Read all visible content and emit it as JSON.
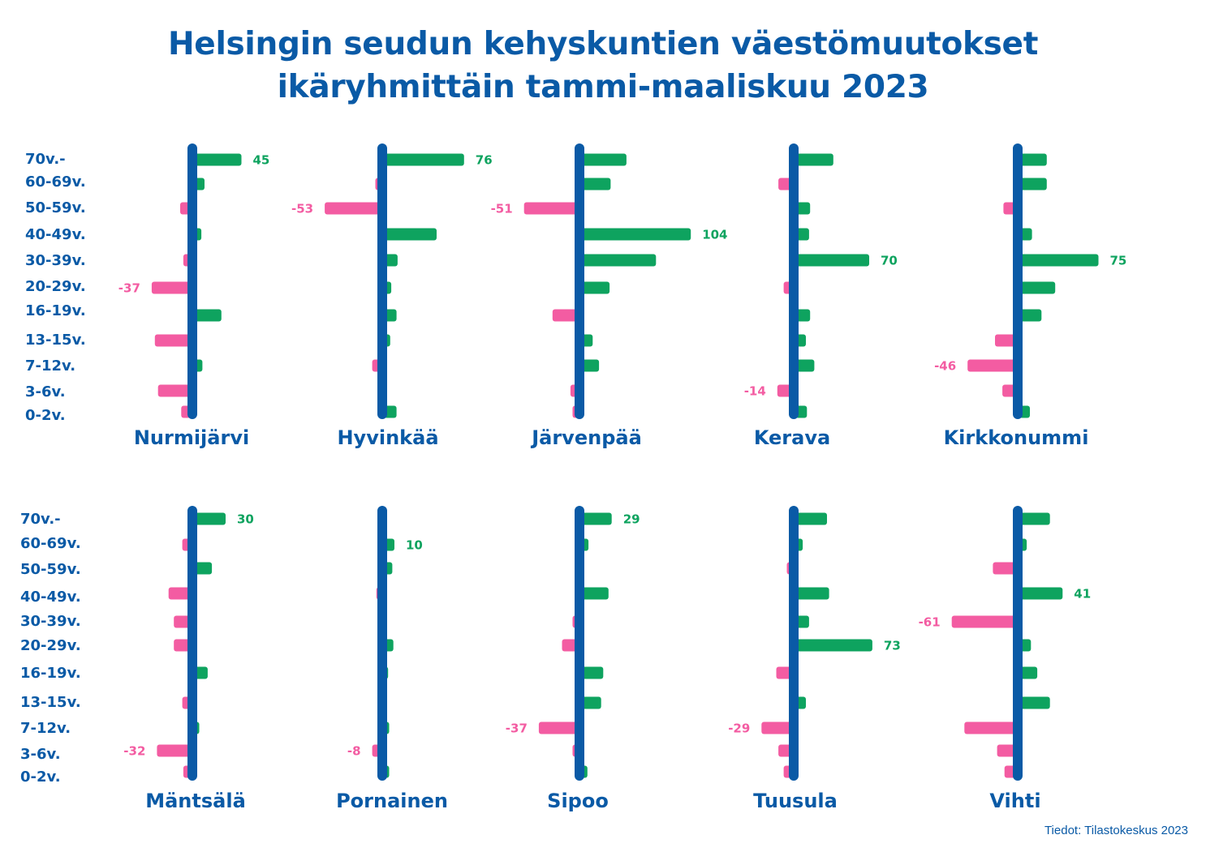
{
  "title_line1": "Helsingin seudun kehyskuntien väestömuutokset",
  "title_line2": "ikäryhmittäin tammi-maaliskuu 2023",
  "source": "Tiedot: Tilastokeskus 2023",
  "colors": {
    "positive": "#0ea35f",
    "negative": "#f35ca2",
    "axis": "#0a5aa6",
    "text": "#0a5aa6"
  },
  "chart_data": [
    {
      "type": "bar",
      "orientation": "horizontal",
      "title": "Nurmijärvi",
      "categories": [
        "70v.-",
        "60-69v.",
        "50-59v.",
        "40-49v.",
        "30-39v.",
        "20-29v.",
        "16-19v.",
        "13-15v.",
        "7-12v.",
        "3-6v.",
        "0-2v."
      ],
      "values": [
        45,
        10,
        -10,
        7,
        -7,
        -37,
        26,
        -34,
        8,
        -31,
        -9
      ],
      "labeled_values": [
        45,
        -37
      ]
    },
    {
      "type": "bar",
      "orientation": "horizontal",
      "title": "Hyvinkää",
      "categories": [
        "70v.-",
        "60-69v.",
        "50-59v.",
        "40-49v.",
        "30-39v.",
        "20-29v.",
        "16-19v.",
        "13-15v.",
        "7-12v.",
        "3-6v.",
        "0-2v."
      ],
      "values": [
        76,
        -5,
        -53,
        50,
        13,
        7,
        12,
        6,
        -8,
        -3,
        12
      ],
      "labeled_values": [
        76,
        -53
      ]
    },
    {
      "type": "bar",
      "orientation": "horizontal",
      "title": "Järvenpää",
      "categories": [
        "70v.-",
        "60-69v.",
        "50-59v.",
        "40-49v.",
        "30-39v.",
        "20-29v.",
        "16-19v.",
        "13-15v.",
        "7-12v.",
        "3-6v.",
        "0-2v."
      ],
      "values": [
        43,
        28,
        -51,
        104,
        71,
        27,
        -24,
        11,
        17,
        -7,
        -5
      ],
      "labeled_values": [
        104,
        -51
      ]
    },
    {
      "type": "bar",
      "orientation": "horizontal",
      "title": "Kerava",
      "categories": [
        "70v.-",
        "60-69v.",
        "50-59v.",
        "40-49v.",
        "30-39v.",
        "20-29v.",
        "16-19v.",
        "13-15v.",
        "7-12v.",
        "3-6v.",
        "0-2v."
      ],
      "values": [
        36,
        -13,
        14,
        13,
        70,
        -8,
        14,
        10,
        18,
        -14,
        11
      ],
      "labeled_values": [
        70,
        -14
      ]
    },
    {
      "type": "bar",
      "orientation": "horizontal",
      "title": "Kirkkonummi",
      "categories": [
        "70v.-",
        "60-69v.",
        "50-59v.",
        "40-49v.",
        "30-39v.",
        "20-29v.",
        "16-19v.",
        "13-15v.",
        "7-12v.",
        "3-6v.",
        "0-2v."
      ],
      "values": [
        26,
        26,
        -12,
        12,
        75,
        34,
        21,
        -20,
        -46,
        -13,
        10
      ],
      "labeled_values": [
        75,
        -46
      ]
    },
    {
      "type": "bar",
      "orientation": "horizontal",
      "title": "Mäntsälä",
      "categories": [
        "70v.-",
        "60-69v.",
        "50-59v.",
        "40-49v.",
        "30-39v.",
        "20-29v.",
        "16-19v.",
        "13-15v.",
        "7-12v.",
        "3-6v.",
        "0-2v."
      ],
      "values": [
        30,
        -8,
        17,
        -21,
        -16,
        -16,
        13,
        -8,
        5,
        -32,
        -7
      ],
      "labeled_values": [
        30,
        -32
      ]
    },
    {
      "type": "bar",
      "orientation": "horizontal",
      "title": "Pornainen",
      "categories": [
        "70v.-",
        "60-69v.",
        "50-59v.",
        "40-49v.",
        "30-39v.",
        "20-29v.",
        "16-19v.",
        "13-15v.",
        "7-12v.",
        "3-6v.",
        "0-2v."
      ],
      "values": [
        3,
        10,
        8,
        -4,
        -3,
        9,
        4,
        -3,
        5,
        -8,
        5
      ],
      "labeled_values": [
        10,
        -8
      ]
    },
    {
      "type": "bar",
      "orientation": "horizontal",
      "title": "Sipoo",
      "categories": [
        "70v.-",
        "60-69v.",
        "50-59v.",
        "40-49v.",
        "30-39v.",
        "20-29v.",
        "16-19v.",
        "13-15v.",
        "7-12v.",
        "3-6v.",
        "0-2v."
      ],
      "values": [
        29,
        7,
        3,
        26,
        -5,
        -15,
        21,
        19,
        -37,
        -5,
        6
      ],
      "labeled_values": [
        29,
        -37
      ]
    },
    {
      "type": "bar",
      "orientation": "horizontal",
      "title": "Tuusula",
      "categories": [
        "70v.-",
        "60-69v.",
        "50-59v.",
        "40-49v.",
        "30-39v.",
        "20-29v.",
        "16-19v.",
        "13-15v.",
        "7-12v.",
        "3-6v.",
        "0-2v."
      ],
      "values": [
        30,
        7,
        -5,
        32,
        13,
        73,
        -15,
        10,
        -29,
        -13,
        -8
      ],
      "labeled_values": [
        73,
        -29
      ]
    },
    {
      "type": "bar",
      "orientation": "horizontal",
      "title": "Vihti",
      "categories": [
        "70v.-",
        "60-69v.",
        "50-59v.",
        "40-49v.",
        "30-39v.",
        "20-29v.",
        "16-19v.",
        "13-15v.",
        "7-12v.",
        "3-6v.",
        "0-2v."
      ],
      "values": [
        29,
        7,
        -22,
        41,
        -61,
        11,
        17,
        29,
        -49,
        -18,
        -11
      ],
      "labeled_values": [
        41,
        -61
      ]
    }
  ]
}
